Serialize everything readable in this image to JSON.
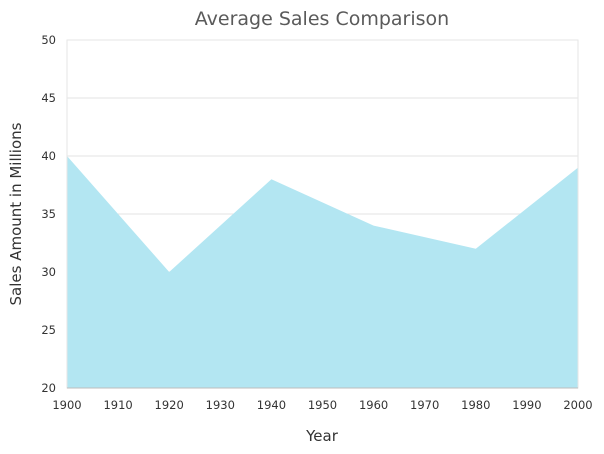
{
  "chart_data": {
    "type": "area",
    "title": "Average Sales Comparison",
    "xlabel": "Year",
    "ylabel": "Sales Amount in Millions",
    "x": [
      1900,
      1920,
      1940,
      1960,
      1980,
      2000
    ],
    "series": [
      {
        "values": [
          40,
          30,
          38,
          34,
          32,
          39
        ],
        "color": "#b3e6f2"
      }
    ],
    "xlim": [
      1900,
      2000
    ],
    "ylim": [
      20,
      50
    ],
    "x_ticks": [
      "1900",
      "1910",
      "1920",
      "1930",
      "1940",
      "1950",
      "1960",
      "1970",
      "1980",
      "1990",
      "2000"
    ],
    "y_ticks": [
      "20",
      "25",
      "30",
      "35",
      "40",
      "45",
      "50"
    ],
    "grid": true,
    "legend": "none"
  }
}
